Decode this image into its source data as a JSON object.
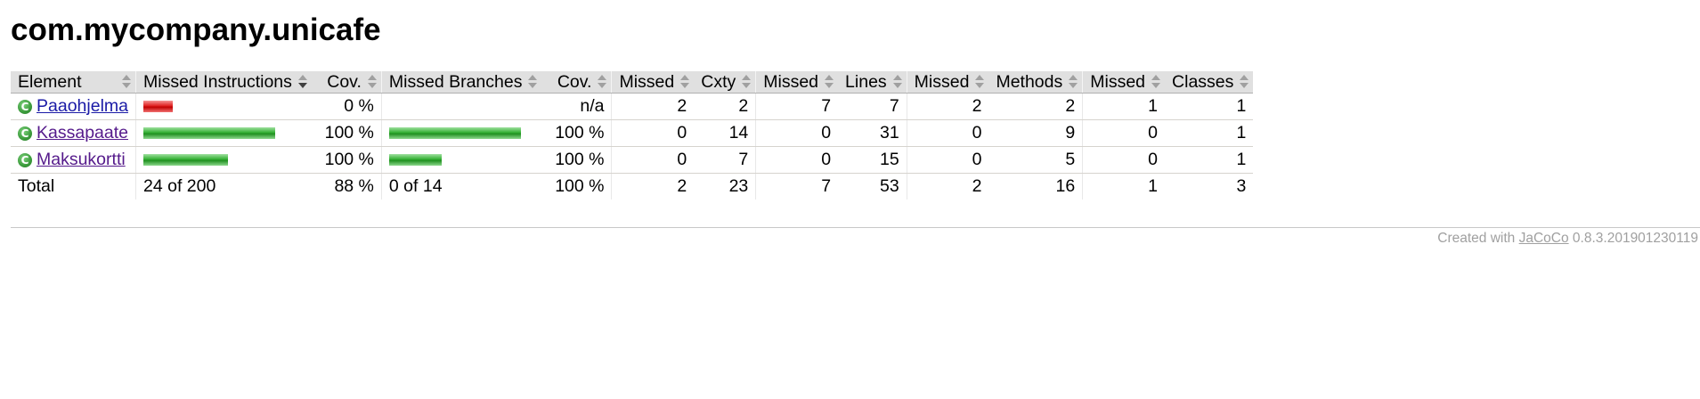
{
  "page": {
    "title": "com.mycompany.unicafe"
  },
  "table": {
    "headers": {
      "element": "Element",
      "missed_instructions": "Missed Instructions",
      "instr_cov": "Cov.",
      "missed_branches": "Missed Branches",
      "branch_cov": "Cov.",
      "missed_cxty": "Missed",
      "cxty": "Cxty",
      "missed_lines": "Missed",
      "lines": "Lines",
      "missed_methods": "Missed",
      "methods": "Methods",
      "missed_classes": "Missed",
      "classes": "Classes"
    },
    "sorted_column": "missed_instructions",
    "rows": [
      {
        "name": "Paaohjelma",
        "icon": "class-icon",
        "link_visited": false,
        "instr_bar": {
          "color": "red",
          "fraction": 0.22
        },
        "instr_cov": "0 %",
        "branch_bar": null,
        "branch_cov": "n/a",
        "missed_cxty": "2",
        "cxty": "2",
        "missed_lines": "7",
        "lines": "7",
        "missed_methods": "2",
        "methods": "2",
        "missed_classes": "1",
        "classes": "1"
      },
      {
        "name": "Kassapaate",
        "icon": "class-icon",
        "link_visited": true,
        "instr_bar": {
          "color": "green",
          "fraction": 1.0
        },
        "instr_cov": "100 %",
        "branch_bar": {
          "color": "green",
          "fraction": 1.0
        },
        "branch_cov": "100 %",
        "missed_cxty": "0",
        "cxty": "14",
        "missed_lines": "0",
        "lines": "31",
        "missed_methods": "0",
        "methods": "9",
        "missed_classes": "0",
        "classes": "1"
      },
      {
        "name": "Maksukortti",
        "icon": "class-icon",
        "link_visited": true,
        "instr_bar": {
          "color": "green",
          "fraction": 0.64
        },
        "instr_cov": "100 %",
        "branch_bar": {
          "color": "green",
          "fraction": 0.4
        },
        "branch_cov": "100 %",
        "missed_cxty": "0",
        "cxty": "7",
        "missed_lines": "0",
        "lines": "15",
        "missed_methods": "0",
        "methods": "5",
        "missed_classes": "0",
        "classes": "1"
      }
    ],
    "total": {
      "label": "Total",
      "instructions": "24 of 200",
      "instr_cov": "88 %",
      "branches": "0 of 14",
      "branch_cov": "100 %",
      "missed_cxty": "2",
      "cxty": "23",
      "missed_lines": "7",
      "lines": "53",
      "missed_methods": "2",
      "methods": "16",
      "missed_classes": "1",
      "classes": "3"
    }
  },
  "footer": {
    "prefix": "Created with",
    "link_text": "JaCoCo",
    "version": "0.8.3.201901230119"
  },
  "colors": {
    "header_bg": "#e0e0e0",
    "red_bar": "#e02020",
    "green_bar": "#33b033",
    "footer_text": "#a0a0a0",
    "link": "#1a1aa6",
    "link_visited": "#551a8b"
  },
  "icons": {
    "class": "class-icon",
    "sort": "sort-arrows-icon"
  }
}
